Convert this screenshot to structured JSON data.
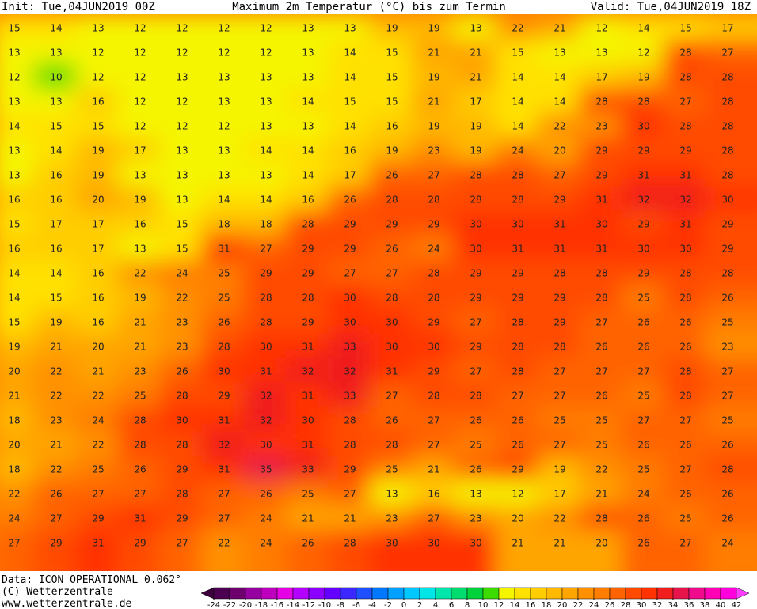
{
  "header": {
    "init": "Init: Tue,04JUN2019 00Z",
    "title": "Maximum 2m Temperatur (°C) bis zum Termin",
    "valid": "Valid: Tue,04JUN2019 18Z"
  },
  "map": {
    "rows": [
      [
        15,
        14,
        13,
        12,
        12,
        12,
        12,
        13,
        13,
        19,
        19,
        13,
        22,
        21,
        12,
        14,
        15,
        17
      ],
      [
        13,
        13,
        12,
        12,
        12,
        12,
        12,
        13,
        14,
        15,
        21,
        21,
        15,
        13,
        13,
        12,
        28,
        27
      ],
      [
        12,
        10,
        12,
        12,
        13,
        13,
        13,
        13,
        14,
        15,
        19,
        21,
        14,
        14,
        17,
        19,
        28,
        28
      ],
      [
        13,
        13,
        16,
        12,
        12,
        13,
        13,
        14,
        15,
        15,
        21,
        17,
        14,
        14,
        28,
        28,
        27,
        28
      ],
      [
        14,
        15,
        15,
        12,
        12,
        12,
        13,
        13,
        14,
        16,
        19,
        19,
        14,
        22,
        23,
        30,
        28,
        28
      ],
      [
        13,
        14,
        19,
        17,
        13,
        13,
        14,
        14,
        16,
        19,
        23,
        19,
        24,
        20,
        29,
        29,
        29,
        28
      ],
      [
        13,
        16,
        19,
        13,
        13,
        13,
        13,
        14,
        17,
        26,
        27,
        28,
        28,
        27,
        29,
        31,
        31,
        28
      ],
      [
        16,
        16,
        20,
        19,
        13,
        14,
        14,
        16,
        26,
        28,
        28,
        28,
        28,
        29,
        31,
        32,
        32,
        30
      ],
      [
        15,
        17,
        17,
        16,
        15,
        18,
        18,
        28,
        29,
        29,
        29,
        30,
        30,
        31,
        30,
        29,
        31,
        29
      ],
      [
        16,
        16,
        17,
        13,
        15,
        31,
        27,
        29,
        29,
        26,
        24,
        30,
        31,
        31,
        31,
        30,
        30,
        29
      ],
      [
        14,
        14,
        16,
        22,
        24,
        25,
        29,
        29,
        27,
        27,
        28,
        29,
        29,
        28,
        28,
        29,
        28,
        28
      ],
      [
        14,
        15,
        16,
        19,
        22,
        25,
        28,
        28,
        30,
        28,
        28,
        29,
        29,
        29,
        28,
        25,
        28,
        26
      ],
      [
        15,
        19,
        16,
        21,
        23,
        26,
        28,
        29,
        30,
        30,
        29,
        27,
        28,
        29,
        27,
        26,
        26,
        25
      ],
      [
        19,
        21,
        20,
        21,
        23,
        28,
        30,
        31,
        33,
        30,
        30,
        29,
        28,
        28,
        26,
        26,
        26,
        23
      ],
      [
        20,
        22,
        21,
        23,
        26,
        30,
        31,
        32,
        32,
        31,
        29,
        27,
        28,
        27,
        27,
        27,
        28,
        27
      ],
      [
        21,
        22,
        22,
        25,
        28,
        29,
        32,
        31,
        33,
        27,
        28,
        28,
        27,
        27,
        26,
        25,
        28,
        27
      ],
      [
        18,
        23,
        24,
        28,
        30,
        31,
        32,
        30,
        28,
        26,
        27,
        26,
        26,
        25,
        25,
        27,
        27,
        25
      ],
      [
        20,
        21,
        22,
        28,
        28,
        32,
        30,
        31,
        28,
        28,
        27,
        25,
        26,
        27,
        25,
        26,
        26,
        26
      ],
      [
        18,
        22,
        25,
        26,
        29,
        31,
        35,
        33,
        29,
        25,
        21,
        26,
        29,
        19,
        22,
        25,
        27,
        28
      ],
      [
        22,
        26,
        27,
        27,
        28,
        27,
        26,
        25,
        27,
        13,
        16,
        13,
        12,
        17,
        21,
        24,
        26,
        26
      ],
      [
        24,
        27,
        29,
        31,
        29,
        27,
        24,
        21,
        21,
        23,
        27,
        23,
        20,
        22,
        28,
        26,
        25,
        26
      ],
      [
        27,
        29,
        31,
        29,
        27,
        22,
        24,
        26,
        28,
        30,
        30,
        30,
        21,
        21,
        20,
        26,
        27,
        24
      ]
    ]
  },
  "colorbar": {
    "ticks": [
      -24,
      -22,
      -20,
      -18,
      -16,
      -14,
      -12,
      -10,
      -8,
      -6,
      -4,
      -2,
      0,
      2,
      4,
      6,
      8,
      10,
      12,
      14,
      16,
      18,
      20,
      22,
      24,
      26,
      28,
      30,
      32,
      34,
      36,
      38,
      40,
      42
    ],
    "colors": [
      "#4b0050",
      "#6e006e",
      "#9600a0",
      "#be00be",
      "#e600e6",
      "#b400ff",
      "#8c00ff",
      "#6400ff",
      "#3c28ff",
      "#1e50ff",
      "#0078ff",
      "#00a0ff",
      "#00c8ff",
      "#00e6e6",
      "#00e6aa",
      "#00dc6e",
      "#00d23c",
      "#3cdc00",
      "#f5f500",
      "#ffe100",
      "#ffcd00",
      "#ffb900",
      "#ffa500",
      "#ff9100",
      "#ff7d00",
      "#ff6400",
      "#ff4b00",
      "#ff3200",
      "#f01e1e",
      "#e6144b",
      "#f00a8c",
      "#ff00b4",
      "#ff00dc"
    ],
    "under_color": "#3c003c",
    "over_color": "#ff3cff"
  },
  "footer": {
    "data": "Data: ICON OPERATIONAL 0.062°",
    "copyright": "(C) Wetterzentrale",
    "url": "www.wetterzentrale.de"
  }
}
